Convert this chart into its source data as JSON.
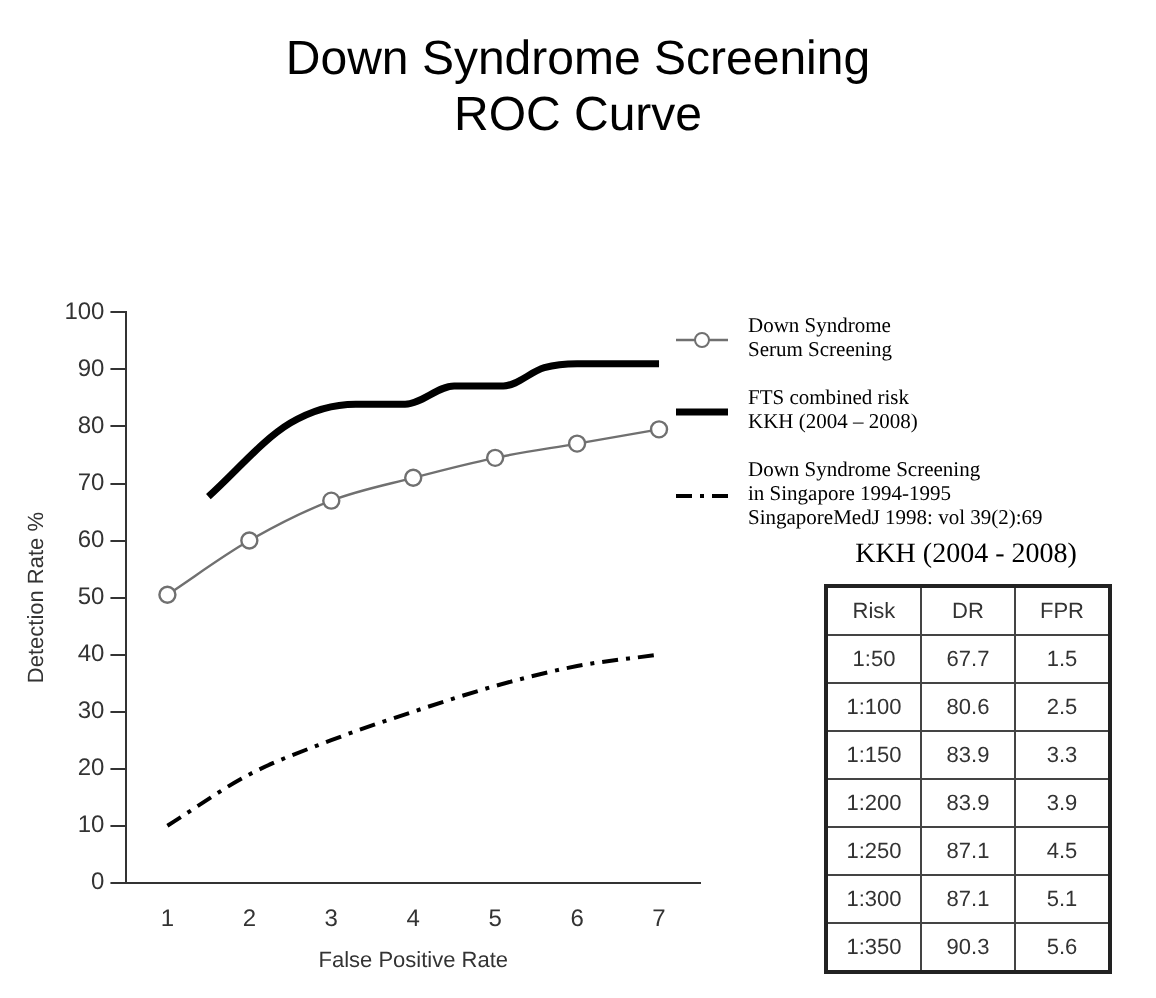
{
  "chart_data": {
    "type": "line",
    "title": "Down Syndrome Screening\nROC Curve",
    "xlabel": "False Positive Rate",
    "ylabel": "Detection Rate %",
    "xlim": [
      0.5,
      7.5
    ],
    "xticks": [
      1,
      2,
      3,
      4,
      5,
      6,
      7
    ],
    "ylim": [
      0,
      100
    ],
    "yticks": [
      0,
      10,
      20,
      30,
      40,
      50,
      60,
      70,
      80,
      90,
      100
    ],
    "grid": false,
    "legend": "top right",
    "series": [
      {
        "name": "Down Syndrome\nSerum Screening",
        "color": "#707070",
        "marker": "circle",
        "line_style": "solid",
        "x": [
          1,
          2,
          3,
          4,
          5,
          6,
          7
        ],
        "values": [
          50.5,
          60,
          67,
          71,
          74.5,
          77,
          79.5
        ]
      },
      {
        "name": "FTS combined risk\nKKH (2004 – 2008)",
        "color": "#000000",
        "marker": "none",
        "line_style": "solid",
        "x": [
          1.5,
          2.5,
          3.3,
          3.9,
          4.5,
          5.1,
          5.6,
          6,
          7
        ],
        "values": [
          67.7,
          80.6,
          83.9,
          83.9,
          87.1,
          87.1,
          90.3,
          91,
          91
        ]
      },
      {
        "name": "Down Syndrome Screening\nin Singapore 1994-1995\nSingaporeMedJ 1998: vol 39(2):69",
        "color": "#000000",
        "marker": "none",
        "line_style": "dashdot",
        "x": [
          1,
          2,
          3,
          4,
          5,
          6,
          7
        ],
        "values": [
          10,
          19,
          25,
          30,
          34.5,
          38,
          40
        ]
      }
    ],
    "annotations": [
      "KKH (2004 - 2008)",
      "Risk",
      "DR",
      "FPR",
      "1:50",
      "67.7",
      "1.5",
      "1:100",
      "80.6",
      "2.5",
      "1:150",
      "83.9",
      "3.3",
      "1:200",
      "83.9",
      "3.9",
      "1:250",
      "87.1",
      "4.5",
      "1:300",
      "87.1",
      "5.1",
      "1:350",
      "90.3",
      "5.6"
    ]
  }
}
